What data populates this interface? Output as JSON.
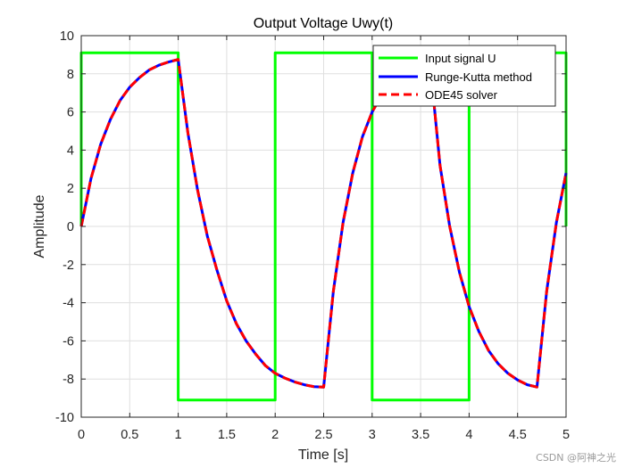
{
  "chart_data": {
    "type": "line",
    "title": "Output Voltage Uwy(t)",
    "xlabel": "Time [s]",
    "ylabel": "Amplitude",
    "xlim": [
      0,
      5
    ],
    "ylim": [
      -10,
      10
    ],
    "xticks": [
      0,
      0.5,
      1,
      1.5,
      2,
      2.5,
      3,
      3.5,
      4,
      4.5,
      5
    ],
    "xtick_labels": [
      "0",
      "0.5",
      "1",
      "1.5",
      "2",
      "2.5",
      "3",
      "3.5",
      "4",
      "4.5",
      "5"
    ],
    "yticks": [
      -10,
      -8,
      -6,
      -4,
      -2,
      0,
      2,
      4,
      6,
      8,
      10
    ],
    "ytick_labels": [
      "-10",
      "-8",
      "-6",
      "-4",
      "-2",
      "0",
      "2",
      "4",
      "6",
      "8",
      "10"
    ],
    "grid": true,
    "legend_position": "top-right",
    "series": [
      {
        "name": "Input signal U",
        "color": "#00ff00",
        "style": "solid",
        "x": [
          0,
          0,
          1,
          1,
          2,
          2,
          3,
          3,
          4,
          4,
          5,
          5
        ],
        "y": [
          0,
          9.1,
          9.1,
          -9.1,
          -9.1,
          9.1,
          9.1,
          -9.1,
          -9.1,
          9.1,
          9.1,
          0
        ]
      },
      {
        "name": "Runge-Kutta method",
        "color": "#0000ff",
        "style": "solid",
        "x": [
          0,
          0.1,
          0.2,
          0.3,
          0.4,
          0.5,
          0.6,
          0.7,
          0.8,
          0.9,
          1.0,
          1.1,
          1.2,
          1.3,
          1.4,
          1.5,
          1.6,
          1.7,
          1.8,
          1.9,
          2.0,
          2.1,
          2.2,
          2.3,
          2.4,
          2.5,
          2.6,
          2.7,
          2.8,
          2.9,
          3.0,
          3.1,
          3.2,
          3.3,
          3.4,
          3.5,
          3.6,
          3.7,
          3.8,
          3.9,
          4.0,
          4.1,
          4.2,
          4.3,
          4.4,
          4.5,
          4.6,
          4.7,
          4.8,
          4.9,
          5.0
        ],
        "y": [
          0,
          2.5,
          4.3,
          5.6,
          6.6,
          7.3,
          7.8,
          8.2,
          8.45,
          8.62,
          8.75,
          4.9,
          1.9,
          -0.5,
          -2.3,
          -3.9,
          -5.1,
          -6.0,
          -6.7,
          -7.3,
          -7.7,
          -7.95,
          -8.15,
          -8.3,
          -8.4,
          -8.42,
          -3.4,
          0.2,
          2.8,
          4.7,
          6.0,
          6.9,
          7.5,
          7.95,
          8.2,
          8.35,
          8.42,
          3.2,
          0.0,
          -2.4,
          -4.2,
          -5.5,
          -6.5,
          -7.2,
          -7.7,
          -8.05,
          -8.3,
          -8.42,
          -3.4,
          0.2,
          2.8
        ]
      },
      {
        "name": "ODE45 solver",
        "color": "#ff0000",
        "style": "dashed",
        "x": [
          0,
          0.1,
          0.2,
          0.3,
          0.4,
          0.5,
          0.6,
          0.7,
          0.8,
          0.9,
          1.0,
          1.1,
          1.2,
          1.3,
          1.4,
          1.5,
          1.6,
          1.7,
          1.8,
          1.9,
          2.0,
          2.1,
          2.2,
          2.3,
          2.4,
          2.5,
          2.6,
          2.7,
          2.8,
          2.9,
          3.0,
          3.1,
          3.2,
          3.3,
          3.4,
          3.5,
          3.6,
          3.7,
          3.8,
          3.9,
          4.0,
          4.1,
          4.2,
          4.3,
          4.4,
          4.5,
          4.6,
          4.7,
          4.8,
          4.9,
          5.0
        ],
        "y": [
          0,
          2.5,
          4.3,
          5.6,
          6.6,
          7.3,
          7.8,
          8.2,
          8.45,
          8.62,
          8.75,
          4.9,
          1.9,
          -0.5,
          -2.3,
          -3.9,
          -5.1,
          -6.0,
          -6.7,
          -7.3,
          -7.7,
          -7.95,
          -8.15,
          -8.3,
          -8.4,
          -8.42,
          -3.4,
          0.2,
          2.8,
          4.7,
          6.0,
          6.9,
          7.5,
          7.95,
          8.2,
          8.35,
          8.42,
          3.2,
          0.0,
          -2.4,
          -4.2,
          -5.5,
          -6.5,
          -7.2,
          -7.7,
          -8.05,
          -8.3,
          -8.42,
          -3.4,
          0.2,
          2.8
        ]
      }
    ]
  },
  "watermark": "CSDN @阿神之光"
}
